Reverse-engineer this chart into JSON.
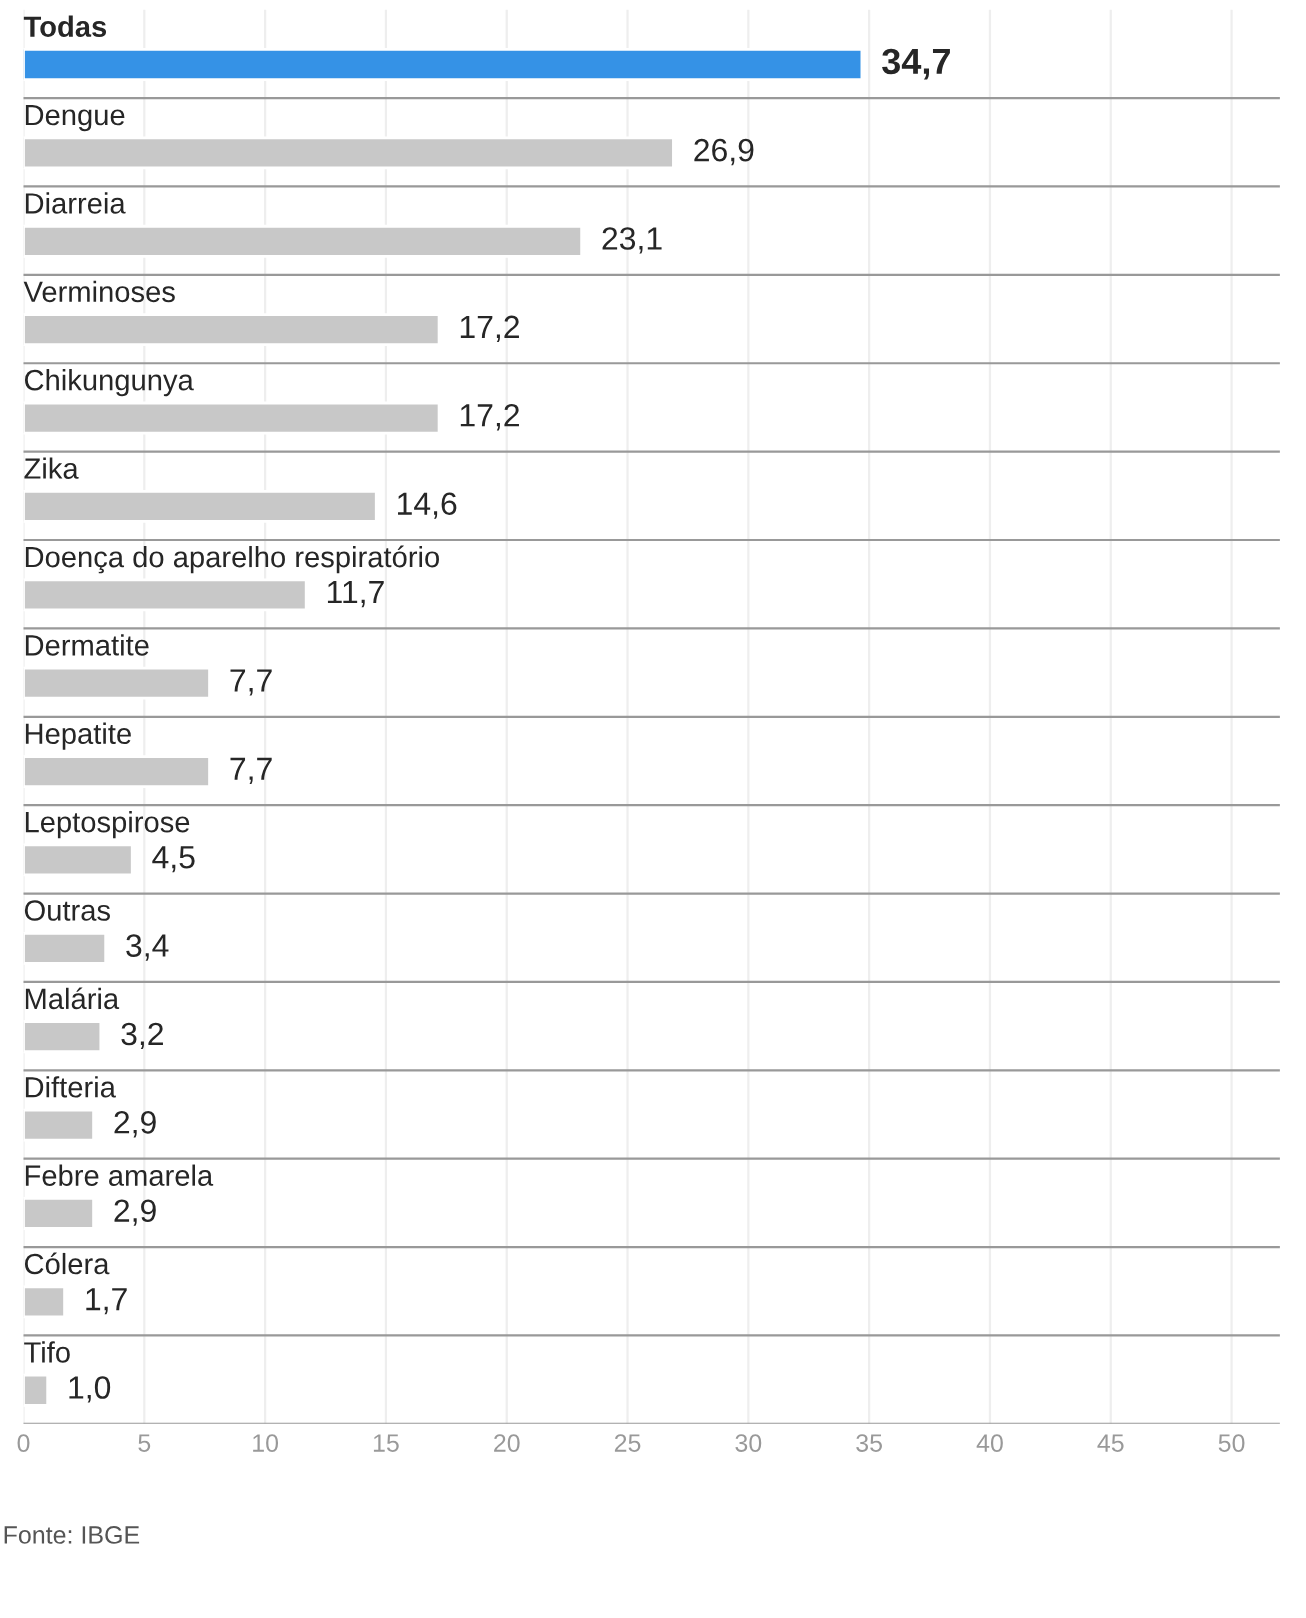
{
  "chart_data": {
    "type": "bar",
    "orientation": "horizontal",
    "categories": [
      "Todas",
      "Dengue",
      "Diarreia",
      "Verminoses",
      "Chikungunya",
      "Zika",
      "Doença do aparelho respiratório",
      "Dermatite",
      "Hepatite",
      "Leptospirose",
      "Outras",
      "Malária",
      "Difteria",
      "Febre amarela",
      "Cólera",
      "Tifo"
    ],
    "values": [
      34.7,
      26.9,
      23.1,
      17.2,
      17.2,
      14.6,
      11.7,
      7.7,
      7.7,
      4.5,
      3.4,
      3.2,
      2.9,
      2.9,
      1.7,
      1.0
    ],
    "value_labels": [
      "34,7",
      "26,9",
      "23,1",
      "17,2",
      "17,2",
      "14,6",
      "11,7",
      "7,7",
      "7,7",
      "4,5",
      "3,4",
      "3,2",
      "2,9",
      "2,9",
      "1,7",
      "1,0"
    ],
    "colors": [
      "#3592e6",
      "#c8c8c8",
      "#c8c8c8",
      "#c8c8c8",
      "#c8c8c8",
      "#c8c8c8",
      "#c8c8c8",
      "#c8c8c8",
      "#c8c8c8",
      "#c8c8c8",
      "#c8c8c8",
      "#c8c8c8",
      "#c8c8c8",
      "#c8c8c8",
      "#c8c8c8",
      "#c8c8c8"
    ],
    "xlim": [
      0,
      52
    ],
    "xticks": [
      0,
      5,
      10,
      15,
      20,
      25,
      30,
      35,
      40,
      45,
      50
    ],
    "grid": true,
    "annotations": [
      "Fonte: IBGE"
    ]
  }
}
